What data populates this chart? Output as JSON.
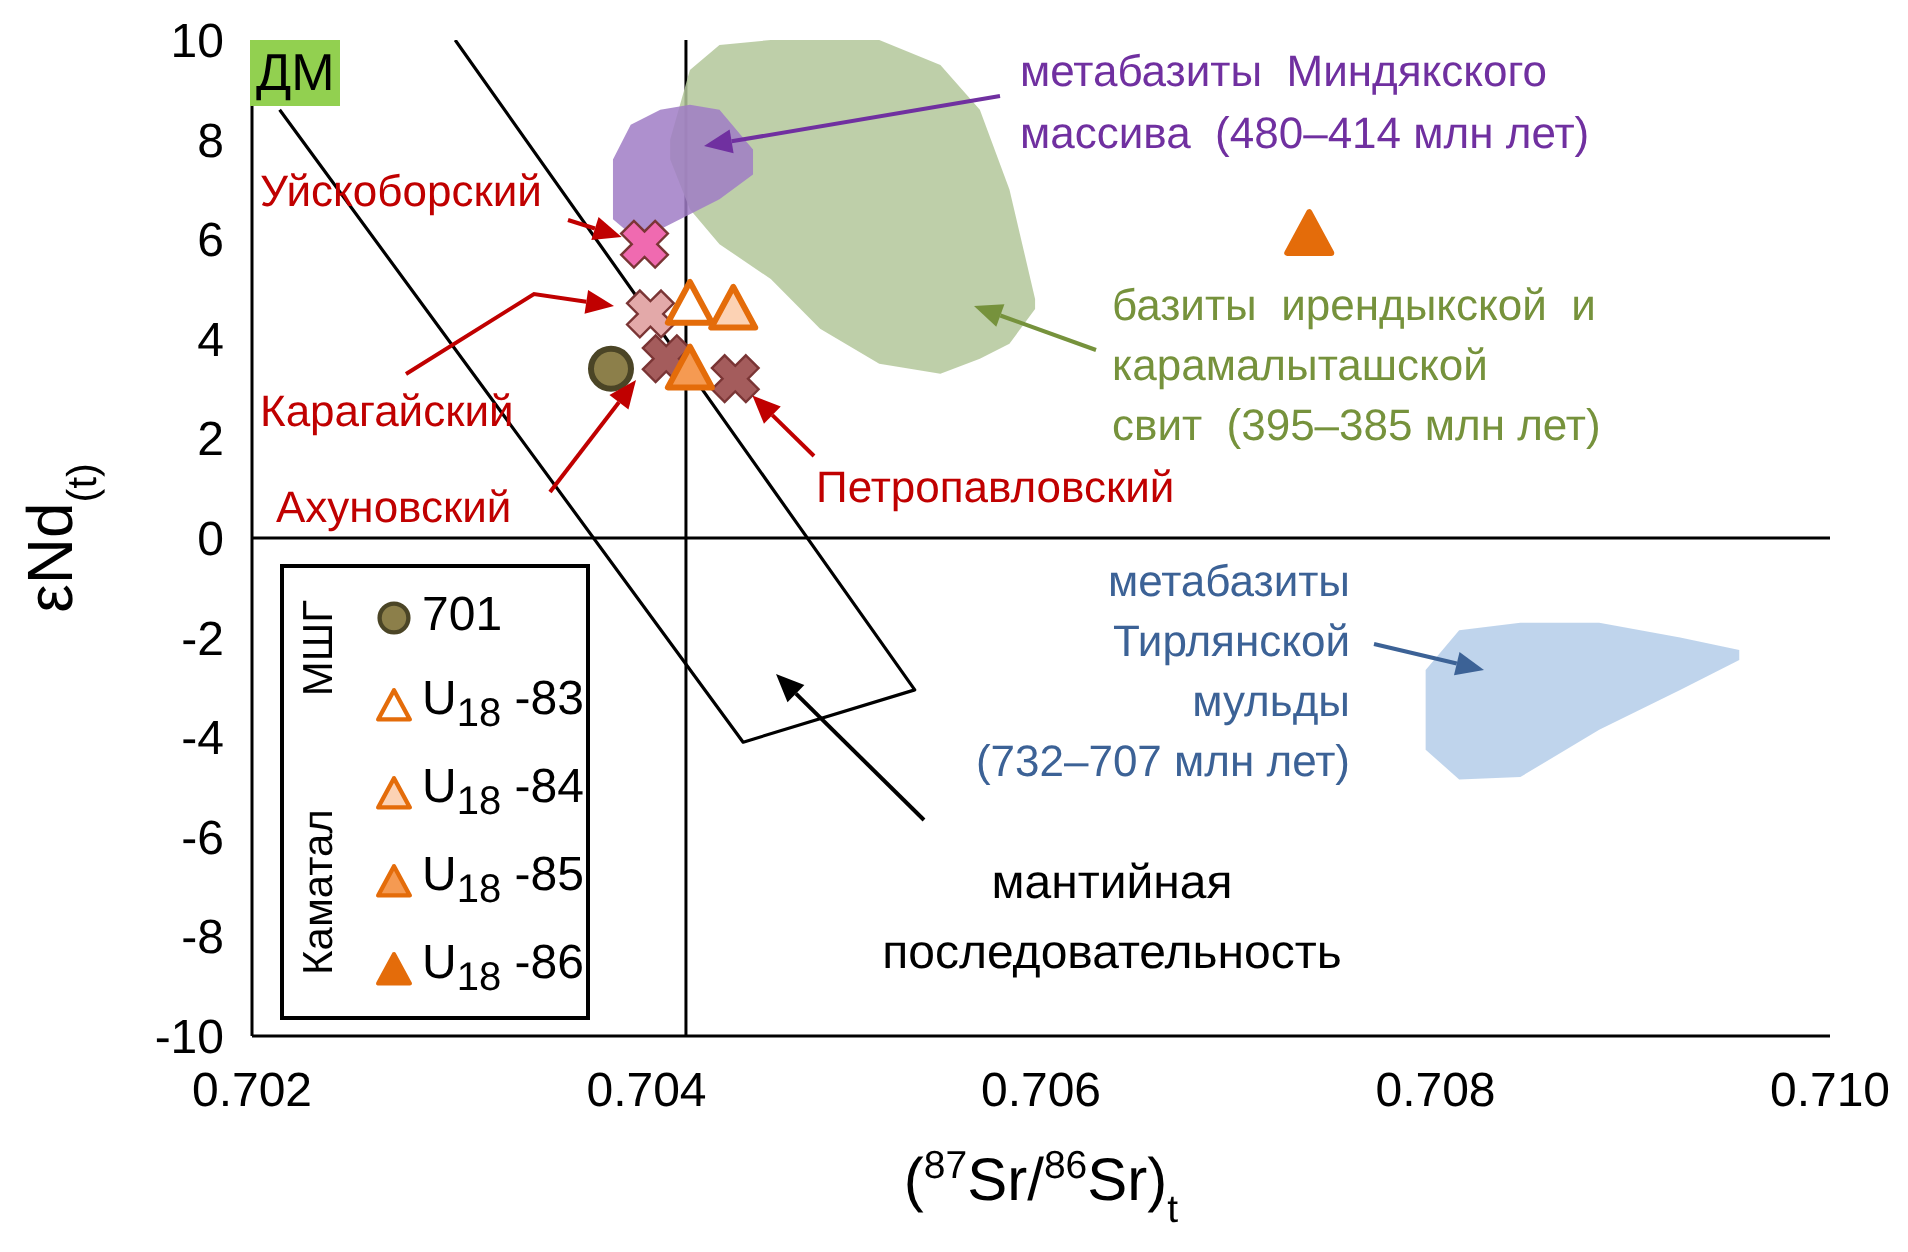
{
  "chart_data": {
    "type": "scatter",
    "xlabel": "($^{87}$Sr/$^{86}$Sr)$_{t}$",
    "ylabel": "εNd$_{(t)}$",
    "xlim": [
      0.702,
      0.71
    ],
    "ylim": [
      -10,
      10
    ],
    "xticks": [
      {
        "value": 0.702,
        "label": "0.702"
      },
      {
        "value": 0.704,
        "label": "0.704"
      },
      {
        "value": 0.706,
        "label": "0.706"
      },
      {
        "value": 0.708,
        "label": "0.708"
      },
      {
        "value": 0.71,
        "label": "0.710"
      }
    ],
    "yticks": [
      -10,
      -8,
      -6,
      -4,
      -2,
      0,
      2,
      4,
      6,
      8,
      10
    ],
    "legend": "bottom left",
    "ref_lines": [
      {
        "axis": "x",
        "value": 0.7042,
        "color": "#000000"
      },
      {
        "axis": "y",
        "value": 0,
        "color": "#000000"
      }
    ],
    "series": [
      {
        "type": "area",
        "color": "#b3c79a",
        "x": [
          0.70412,
          0.70422,
          0.70437,
          0.70463,
          0.70488,
          0.70518,
          0.70549,
          0.70569,
          0.70584,
          0.70597
        ],
        "values": [
          null,
          null,
          null,
          null,
          null,
          null,
          null,
          null,
          null,
          null
        ],
        "lower": [
          7.6,
          6.6,
          5.9,
          5.2,
          4.2,
          3.5,
          3.3,
          3.6,
          3.9,
          4.6
        ],
        "upper": [
          8.0,
          9.4,
          9.9,
          10,
          10,
          10,
          9.5,
          8.6,
          7.0,
          4.8
        ]
      },
      {
        "type": "area",
        "color": "#a07cc6",
        "x": [
          0.70383,
          0.70392,
          0.70407,
          0.70422,
          0.70437,
          0.70454
        ],
        "values": [
          null,
          null,
          null,
          null,
          null,
          null
        ],
        "lower": [
          6.4,
          6.1,
          6.2,
          6.5,
          6.8,
          7.3
        ],
        "upper": [
          7.6,
          8.3,
          8.6,
          8.7,
          8.6,
          7.8
        ]
      },
      {
        "type": "area",
        "color": "#b4cde9",
        "x": [
          0.70795,
          0.70812,
          0.70843,
          0.70883,
          0.70924,
          0.70954
        ],
        "values": [
          null,
          null,
          null,
          null,
          null,
          null
        ],
        "lower": [
          -4.25,
          -4.85,
          -4.8,
          -3.85,
          -3.05,
          -2.45
        ],
        "upper": [
          -2.65,
          -1.85,
          -1.7,
          -1.7,
          -2.0,
          -2.25
        ]
      },
      {
        "type": "line",
        "color": "#000000",
        "x": [
          0.70214,
          0.70449,
          0.70536,
          0.70303
        ],
        "values": [
          8.6,
          -4.1,
          -3.05,
          10
        ]
      },
      {
        "marker": "cross",
        "color": "#f06ab0",
        "x": [
          0.70399
        ],
        "values": [
          5.9
        ]
      },
      {
        "marker": "cross",
        "color": "#e3a9a9",
        "x": [
          0.70402
        ],
        "values": [
          4.5
        ]
      },
      {
        "marker": "cross",
        "color": "#a45c5c",
        "x": [
          0.7041,
          0.70445
        ],
        "values": [
          3.6,
          3.2
        ]
      },
      {
        "name": "701",
        "marker": "circle",
        "color": "#8c7f4a",
        "x": [
          0.70382
        ],
        "values": [
          3.4
        ]
      },
      {
        "name": "U$_{18}$ -83",
        "marker": "triangle",
        "color": "#ffffff",
        "x": [
          0.70422
        ],
        "values": [
          4.7
        ]
      },
      {
        "name": "U$_{18}$ -84",
        "marker": "triangle",
        "color": "#fcd2b4",
        "x": [
          0.70444
        ],
        "values": [
          4.6
        ]
      },
      {
        "name": "U$_{18}$ -85",
        "marker": "triangle",
        "color": "#f59a52",
        "x": [
          0.70422
        ],
        "values": [
          3.4
        ]
      },
      {
        "name": "U$_{18}$ -86",
        "marker": "triangle",
        "color": "#e46c0a",
        "x": [
          0.70736
        ],
        "values": [
          6.1
        ]
      }
    ],
    "annotations": [
      "ДМ",
      {
        "text": "Уйскоборский",
        "x": 0.70399,
        "y": 5.9
      },
      "Карагайский",
      "Ахуновский",
      {
        "text": "Петропавловский",
        "x": 0.70445,
        "y": 3.2
      },
      "метабазиты  Миндякского\nмассива  (480–414 млн лет)",
      "базиты  ирендыкской  и\nкарамалыташской\nсвит  (395–385 млн лет)",
      "метабазиты\nТирлянской\nмульды\n(732–707 млн лет)",
      "мантийная\nпоследовательность",
      "МШГ",
      "Каматал"
    ]
  }
}
